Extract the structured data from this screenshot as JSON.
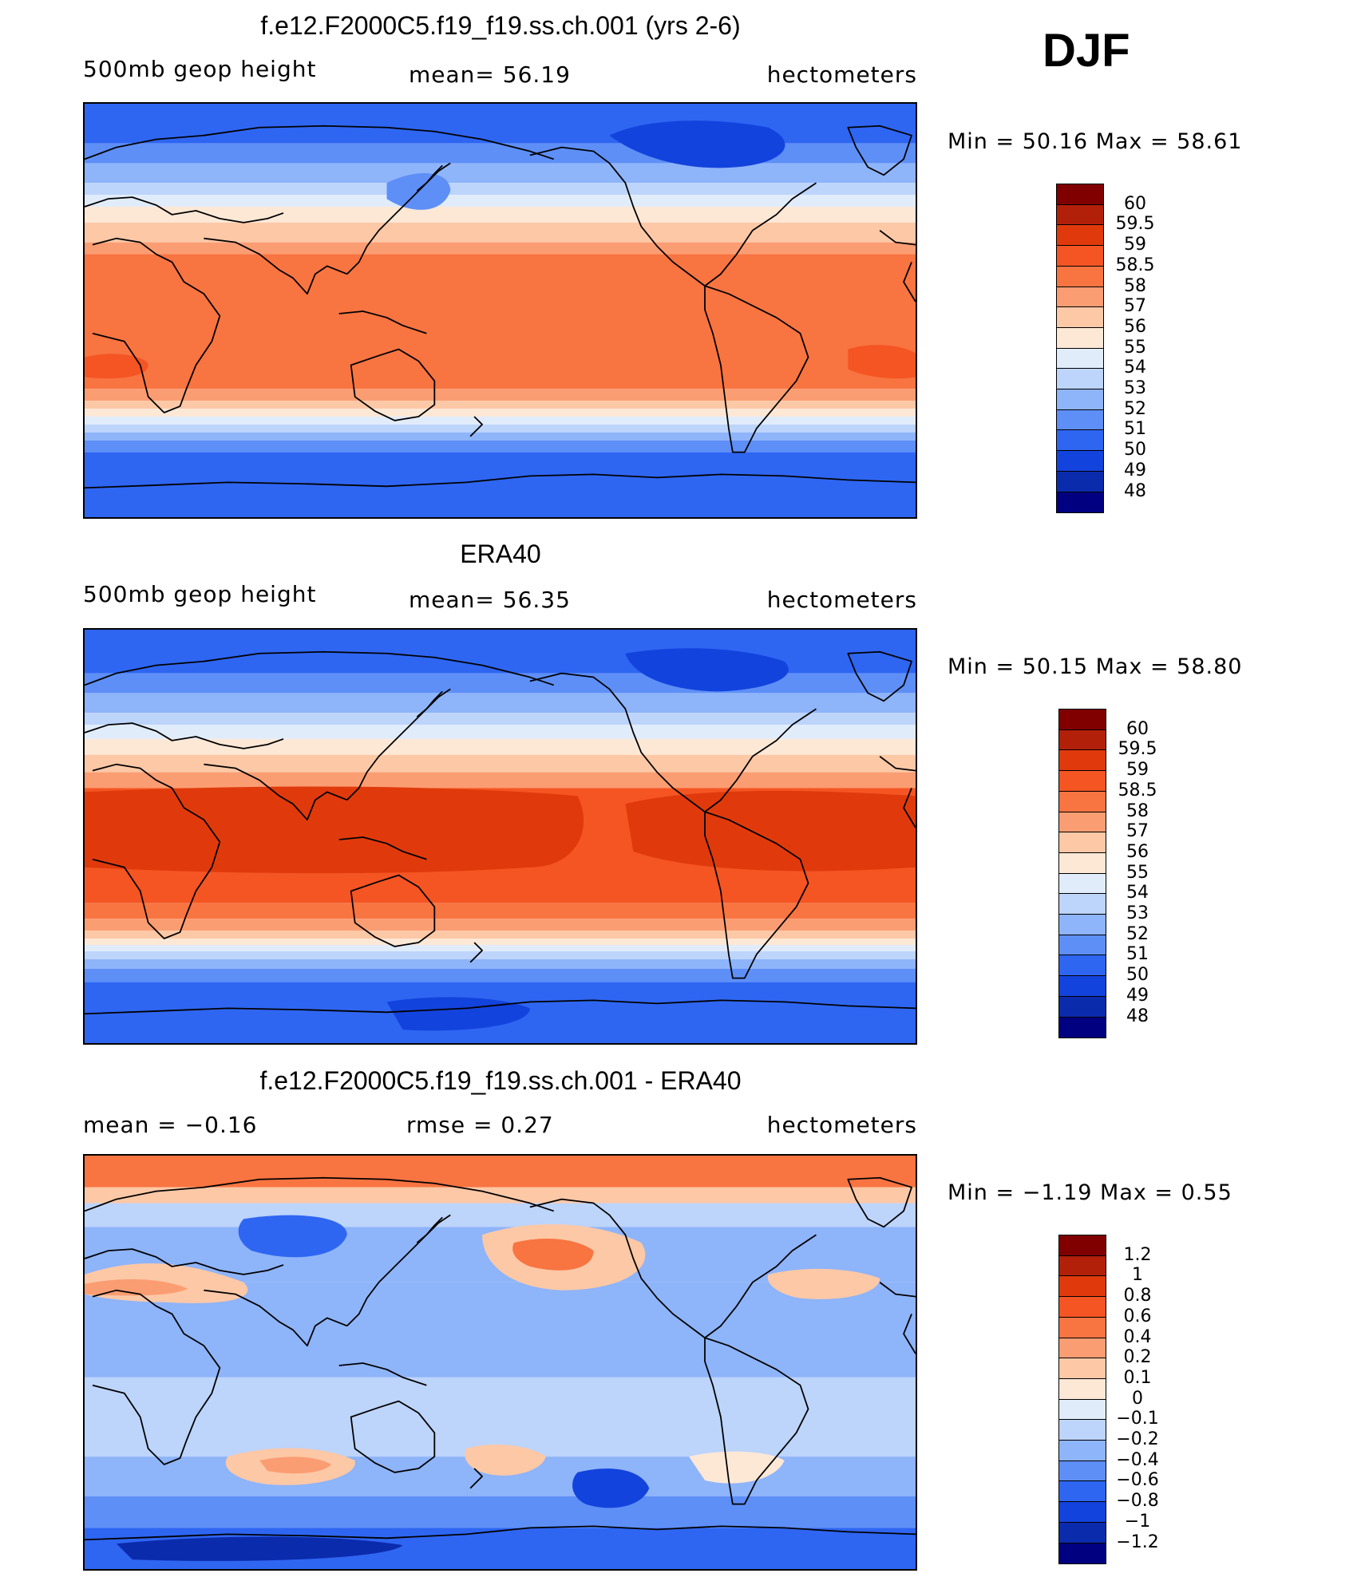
{
  "season": "DJF",
  "panels": [
    {
      "title": "f.e12.F2000C5.f19_f19.ss.ch.001 (yrs 2-6)",
      "left": "500mb  geop  height",
      "center": "mean=   56.19",
      "right": "hectometers",
      "minmax": "Min  =    50.16  Max  =    58.61",
      "kind": "model"
    },
    {
      "title": "ERA40",
      "left": "500mb  geop  height",
      "center": "mean=   56.35",
      "right": "hectometers",
      "minmax": "Min  =    50.15  Max  =    58.80",
      "kind": "obs"
    },
    {
      "title": "f.e12.F2000C5.f19_f19.ss.ch.001 - ERA40",
      "left": "mean  =    −0.16",
      "center": "rmse  =     0.27",
      "right": "hectometers",
      "minmax": "Min  =   −1.19  Max  =     0.55",
      "kind": "diff"
    }
  ],
  "colorbars": {
    "height": {
      "labels": [
        "60",
        "59.5",
        "59",
        "58.5",
        "58",
        "57",
        "56",
        "55",
        "54",
        "53",
        "52",
        "51",
        "50",
        "49",
        "48"
      ],
      "colors": [
        "#800000",
        "#b3200a",
        "#e03a0c",
        "#f45523",
        "#f87441",
        "#fb9d72",
        "#fdc8a6",
        "#fde8d6",
        "#e1ecfb",
        "#bdd4fb",
        "#8eb4fa",
        "#5e8ff7",
        "#2e66f2",
        "#1343dd",
        "#0b2bad",
        "#000080"
      ]
    },
    "diff": {
      "labels": [
        "1.2",
        "1",
        "0.8",
        "0.6",
        "0.4",
        "0.2",
        "0.1",
        "0",
        "−0.1",
        "−0.2",
        "−0.4",
        "−0.6",
        "−0.8",
        "−1",
        "−1.2"
      ],
      "colors": [
        "#800000",
        "#b3200a",
        "#e03a0c",
        "#f45523",
        "#f87441",
        "#fb9d72",
        "#fdc8a6",
        "#fde8d6",
        "#e1ecfb",
        "#bdd4fb",
        "#8eb4fa",
        "#5e8ff7",
        "#2e66f2",
        "#1343dd",
        "#0b2bad",
        "#000080"
      ]
    }
  }
}
